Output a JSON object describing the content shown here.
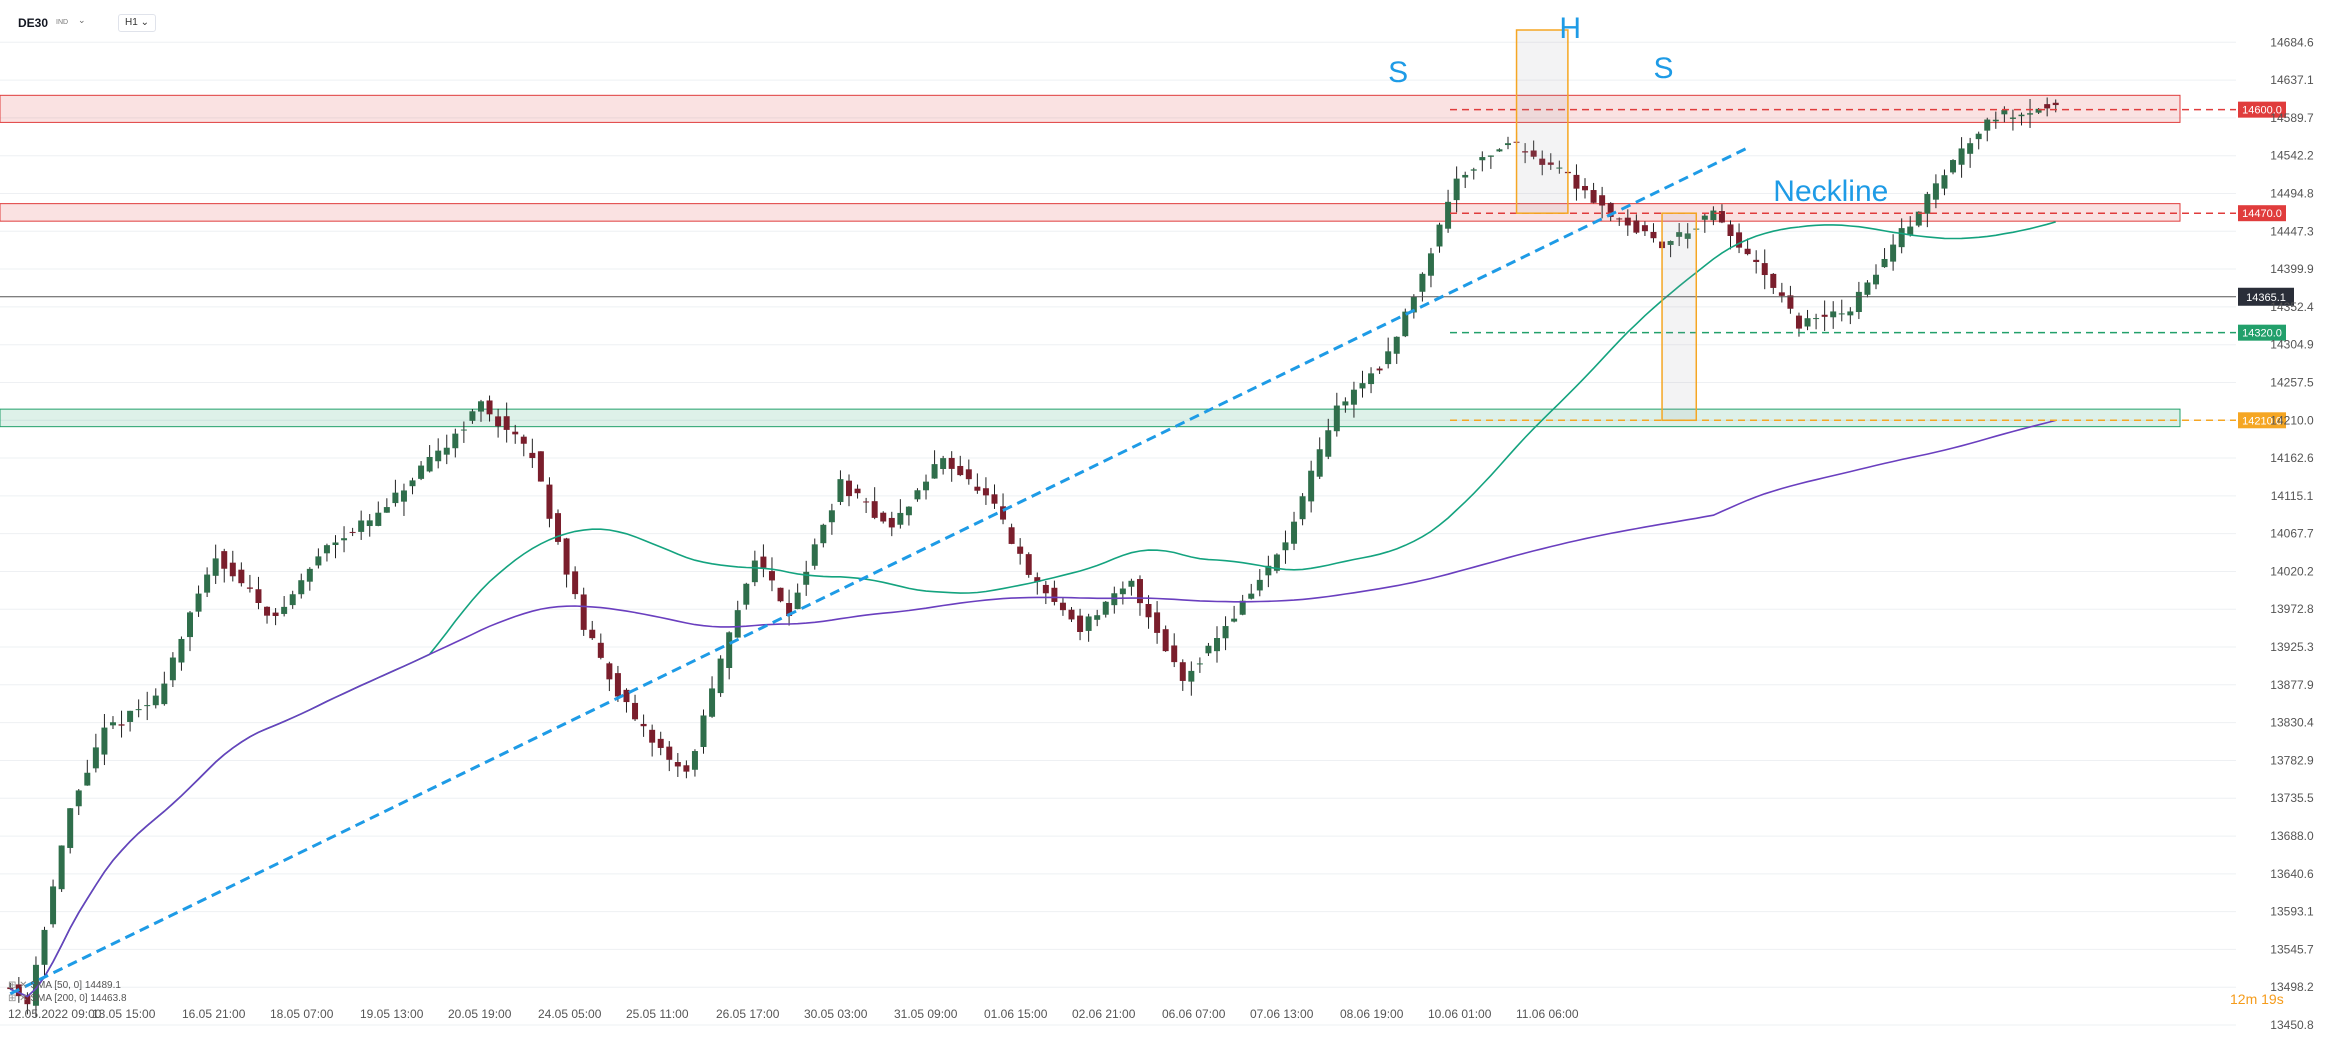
{
  "toolbar": {
    "symbol": "DE30",
    "symbol_sub": "IND",
    "timeframe": "H1",
    "dropdown_icon": "chevron-down-icon"
  },
  "chart_data": {
    "type": "candlestick",
    "ylim": [
      13450.8,
      14700
    ],
    "yticks": [
      "14684.6",
      "14637.1",
      "14589.7",
      "14542.2",
      "14494.8",
      "14447.3",
      "14399.9",
      "14352.4",
      "14304.9",
      "14257.5",
      "14210.0",
      "14162.6",
      "14115.1",
      "14067.7",
      "14020.2",
      "13972.8",
      "13925.3",
      "13877.9",
      "13830.4",
      "13782.9",
      "13735.5",
      "13688.0",
      "13640.6",
      "13593.1",
      "13545.7",
      "13498.2",
      "13450.8"
    ],
    "xticks": [
      "12.05.2022  09:00",
      "13.05  15:00",
      "16.05  21:00",
      "18.05  07:00",
      "19.05  13:00",
      "20.05  19:00",
      "24.05  05:00",
      "25.05  11:00",
      "26.05  17:00",
      "30.05  03:00",
      "31.05  09:00",
      "01.06  15:00",
      "02.06  21:00",
      "06.06  07:00",
      "07.06  13:00",
      "08.06  19:00",
      "10.06  01:00",
      "11.06  06:00"
    ],
    "n_bars": 240,
    "price_path": [
      [
        0,
        13505
      ],
      [
        3,
        13480
      ],
      [
        8,
        13720
      ],
      [
        12,
        13820
      ],
      [
        18,
        13860
      ],
      [
        25,
        14040
      ],
      [
        32,
        13960
      ],
      [
        38,
        14055
      ],
      [
        44,
        14090
      ],
      [
        48,
        14135
      ],
      [
        52,
        14180
      ],
      [
        56,
        14230
      ],
      [
        62,
        14165
      ],
      [
        68,
        13950
      ],
      [
        74,
        13830
      ],
      [
        80,
        13765
      ],
      [
        84,
        13905
      ],
      [
        88,
        14040
      ],
      [
        92,
        13970
      ],
      [
        98,
        14130
      ],
      [
        104,
        14075
      ],
      [
        110,
        14165
      ],
      [
        116,
        14100
      ],
      [
        120,
        14015
      ],
      [
        126,
        13950
      ],
      [
        132,
        14005
      ],
      [
        138,
        13885
      ],
      [
        144,
        13965
      ],
      [
        150,
        14055
      ],
      [
        156,
        14225
      ],
      [
        162,
        14290
      ],
      [
        166,
        14395
      ],
      [
        170,
        14515
      ],
      [
        176,
        14560
      ],
      [
        182,
        14525
      ],
      [
        188,
        14470
      ],
      [
        194,
        14430
      ],
      [
        200,
        14468
      ],
      [
        206,
        14390
      ],
      [
        210,
        14330
      ],
      [
        216,
        14350
      ],
      [
        222,
        14445
      ],
      [
        228,
        14535
      ],
      [
        232,
        14590
      ],
      [
        240,
        14605
      ]
    ],
    "current_price": "14365.1",
    "levels": [
      {
        "value": 14600.0,
        "label": "14600.0",
        "color": "#e03c3c",
        "style": "dashed"
      },
      {
        "value": 14470.0,
        "label": "14470.0",
        "color": "#e03c3c",
        "style": "dashed"
      },
      {
        "value": 14320.0,
        "label": "14320.0",
        "color": "#22a06b",
        "style": "dashed"
      },
      {
        "value": 14210.0,
        "label": "14210.0",
        "color": "#f5a623",
        "style": "dashed"
      }
    ],
    "zones": [
      {
        "from": 14584,
        "to": 14618,
        "color": "#e03c3c"
      },
      {
        "from": 14460,
        "to": 14482,
        "color": "#e03c3c"
      },
      {
        "from": 14202,
        "to": 14224,
        "color": "#22a06b"
      }
    ],
    "annotations": [
      {
        "text": "S",
        "bar": 161,
        "value": 14635
      },
      {
        "text": "H",
        "bar": 181,
        "value": 14690
      },
      {
        "text": "S",
        "bar": 192,
        "value": 14640
      },
      {
        "text": "Neckline",
        "bar": 206,
        "value": 14485
      }
    ],
    "neckline": [
      [
        0,
        13490
      ],
      [
        203,
        14552
      ]
    ],
    "sma50": {
      "legend": "SMA [50, 0]",
      "value": "14489.1",
      "color": "#14a37f"
    },
    "sma200": {
      "legend": "SMA [200, 0]",
      "value": "14463.8",
      "color": "#6a3fbf"
    },
    "countdown": {
      "min": "12m",
      "sec": "19s"
    }
  },
  "colors": {
    "bull": "#2f6e4b",
    "bear": "#7a1e2c",
    "grid": "#eef0f3",
    "neckline": "#1e9be6",
    "price_line": "#555555"
  }
}
